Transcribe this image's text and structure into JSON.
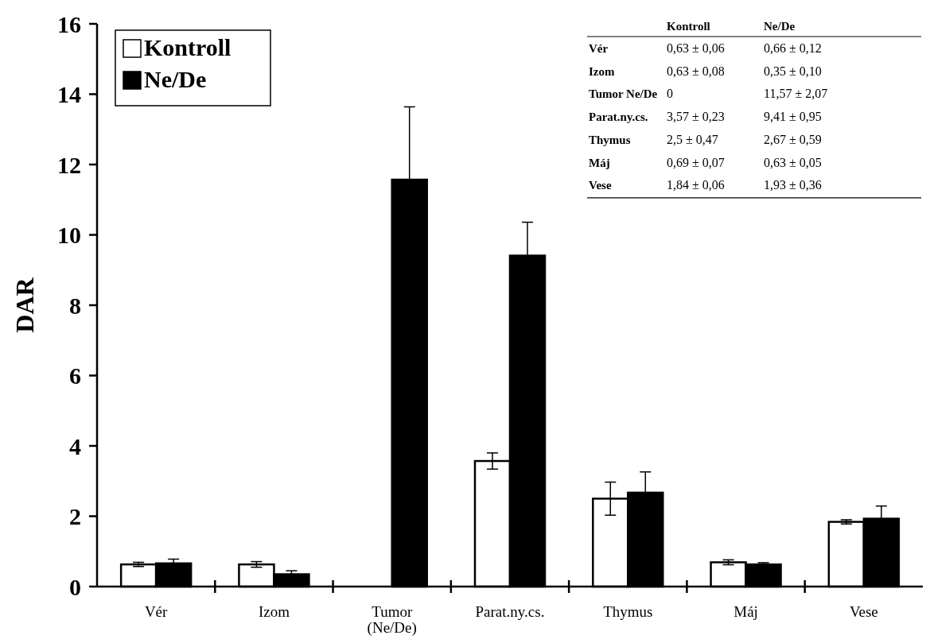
{
  "chart_data": {
    "type": "bar",
    "ylabel": "DAR",
    "categories": [
      "Vér",
      "Izom",
      "Tumor\n(Ne/De)",
      "Parat.ny.cs.",
      "Thymus",
      "Máj",
      "Vese"
    ],
    "series": [
      {
        "name": "Kontroll",
        "color": "#ffffff",
        "values": [
          0.63,
          0.63,
          0,
          3.57,
          2.5,
          0.69,
          1.84
        ],
        "errors": [
          0.06,
          0.08,
          null,
          0.23,
          0.47,
          0.07,
          0.06
        ]
      },
      {
        "name": "Ne/De",
        "color": "#000000",
        "values": [
          0.66,
          0.35,
          11.57,
          9.41,
          2.67,
          0.63,
          1.93
        ],
        "errors": [
          0.12,
          0.1,
          2.07,
          0.95,
          0.59,
          0.05,
          0.36
        ]
      }
    ],
    "annotations": [
      "Vér",
      "0,63 ± 0,06",
      "0,66 ± 0,12",
      "Izom",
      "0,63 ± 0,08",
      "0,35 ± 0,10",
      "Tumor Ne/De",
      "0",
      "11,57 ± 2,07",
      "Parat.ny.cs.",
      "3,57 ± 0,23",
      "9,41 ± 0,95",
      "Thymus",
      "2,5 ± 0,47",
      "2,67 ± 0,59",
      "Máj",
      "0,69 ± 0,07",
      "0,63 ± 0,05",
      "Vese",
      "1,84 ± 0,06",
      "1,93 ± 0,36"
    ],
    "ylim": [
      0,
      16
    ],
    "yticks": [
      0,
      2,
      4,
      6,
      8,
      10,
      12,
      14,
      16
    ],
    "grid": false,
    "legend": "top left"
  }
}
